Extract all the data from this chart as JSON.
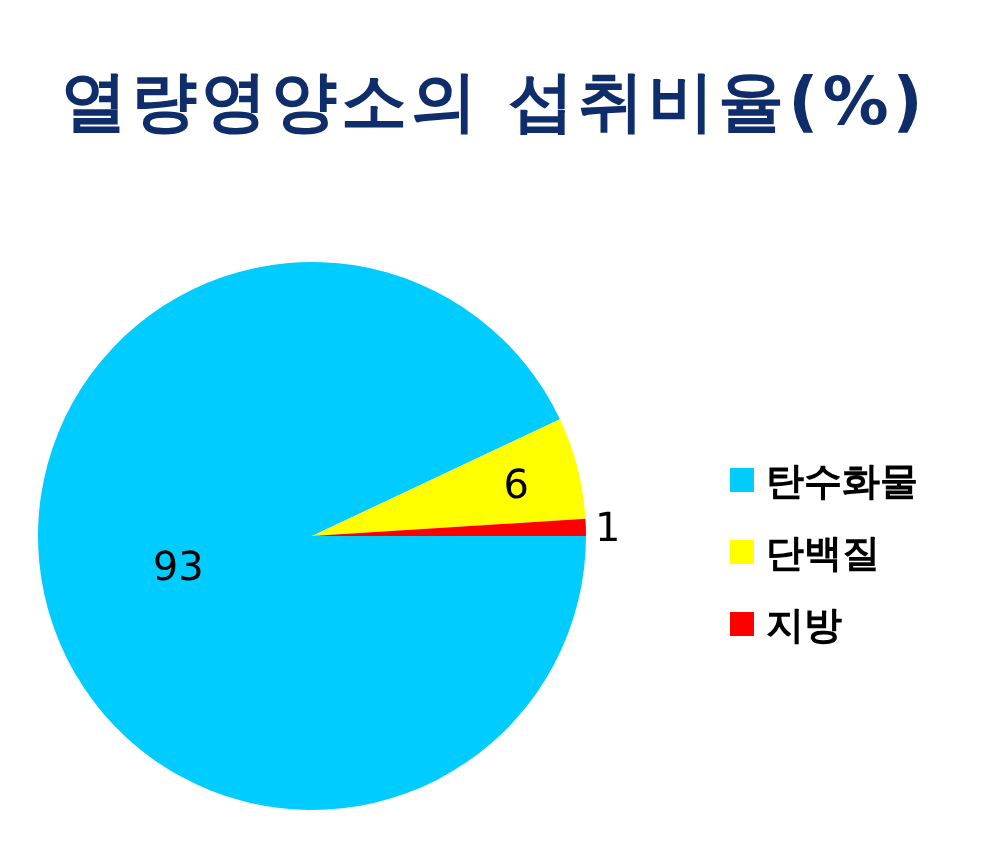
{
  "chart_data": {
    "type": "pie",
    "title": "열량영양소의 섭취비율(%)",
    "categories": [
      "탄수화물",
      "단백질",
      "지방"
    ],
    "values": [
      93,
      6,
      1
    ],
    "colors": [
      "#00ccff",
      "#ffff00",
      "#ff0000"
    ],
    "data_labels": true,
    "legend": "right"
  }
}
